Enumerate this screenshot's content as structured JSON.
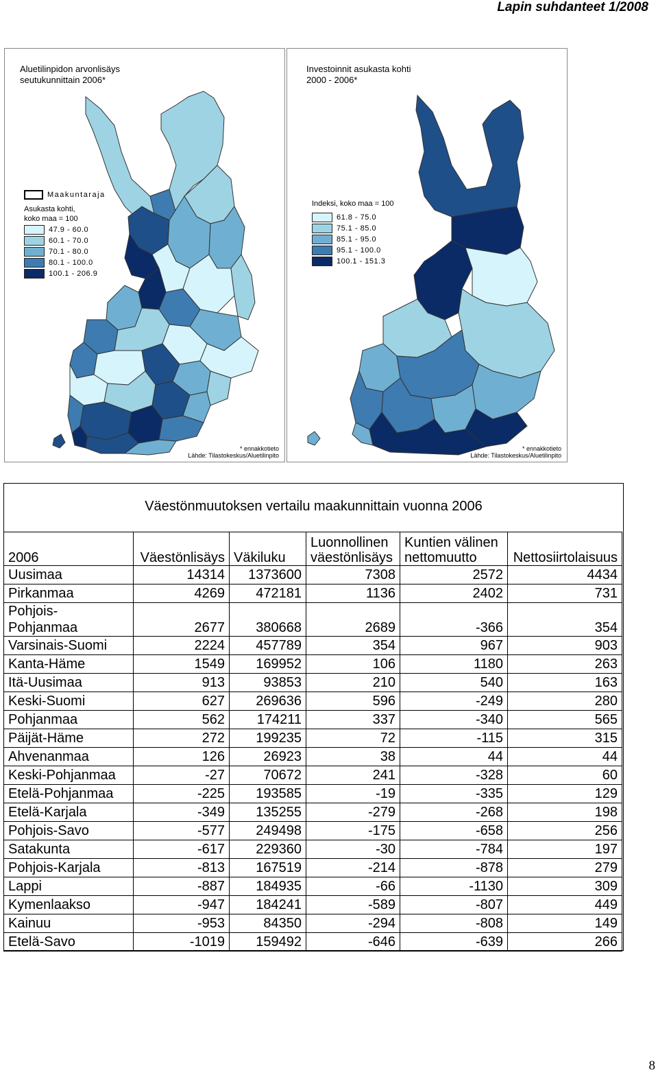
{
  "header": {
    "title": "Lapin suhdanteet 1/2008"
  },
  "colors": {
    "c1": "#d6f4fb",
    "c2": "#9ed3e4",
    "c3": "#6fb0d2",
    "c4": "#3e7bb0",
    "c5": "#1f4f88",
    "c6": "#0b2b66"
  },
  "map_left": {
    "title_line1": "Aluetilinpidon arvonlisäys",
    "title_line2": "seutukunnittain 2006*",
    "boundary_label": "Maakuntaraja",
    "legend_caption1": "Asukasta kohti,",
    "legend_caption2": "koko maa = 100",
    "legend": [
      "47.9 - 60.0",
      "60.1 - 70.0",
      "70.1 - 80.0",
      "80.1 - 100.0",
      "100.1 - 206.9"
    ],
    "note": "* ennakkotieto",
    "source": "Lähde: Tilastokeskus/Aluetilinpito"
  },
  "map_right": {
    "title_line1": "Investoinnit asukasta kohti",
    "title_line2": "2000 - 2006*",
    "legend_caption1": "Indeksi, koko maa = 100",
    "legend": [
      "61.8 - 75.0",
      "75.1 - 85.0",
      "85.1 - 95.0",
      "95.1 - 100.0",
      "100.1 - 151.3"
    ],
    "note": "* ennakkotieto",
    "source": "Lähde: Tilastokeskus/Aluetilinpito"
  },
  "table": {
    "title": "Väestönmuutoksen vertailu maakunnittain vuonna 2006",
    "headers": {
      "year": "2006",
      "h1": "Väestönlisäys",
      "h2": "Väkiluku",
      "h3a": "Luonnollinen",
      "h3b": "väestönlisäys",
      "h4a": "Kuntien välinen",
      "h4b": "nettomuutto",
      "h5": "Nettosiirtolaisuus"
    },
    "rows": [
      {
        "region": "Uusimaa",
        "v1": "14314",
        "v2": "1373600",
        "v3": "7308",
        "v4": "2572",
        "v5": "4434"
      },
      {
        "region": "Pirkanmaa",
        "v1": "4269",
        "v2": "472181",
        "v3": "1136",
        "v4": "2402",
        "v5": "731"
      },
      {
        "region_a": "Pohjois-",
        "region_b": "Pohjanmaa",
        "v1": "2677",
        "v2": "380668",
        "v3": "2689",
        "v4": "-366",
        "v5": "354"
      },
      {
        "region": "Varsinais-Suomi",
        "v1": "2224",
        "v2": "457789",
        "v3": "354",
        "v4": "967",
        "v5": "903"
      },
      {
        "region": "Kanta-Häme",
        "v1": "1549",
        "v2": "169952",
        "v3": "106",
        "v4": "1180",
        "v5": "263"
      },
      {
        "region": "Itä-Uusimaa",
        "v1": "913",
        "v2": "93853",
        "v3": "210",
        "v4": "540",
        "v5": "163"
      },
      {
        "region": "Keski-Suomi",
        "v1": "627",
        "v2": "269636",
        "v3": "596",
        "v4": "-249",
        "v5": "280"
      },
      {
        "region": "Pohjanmaa",
        "v1": "562",
        "v2": "174211",
        "v3": "337",
        "v4": "-340",
        "v5": "565"
      },
      {
        "region": "Päijät-Häme",
        "v1": "272",
        "v2": "199235",
        "v3": "72",
        "v4": "-115",
        "v5": "315"
      },
      {
        "region": "Ahvenanmaa",
        "v1": "126",
        "v2": "26923",
        "v3": "38",
        "v4": "44",
        "v5": "44"
      },
      {
        "region": "Keski-Pohjanmaa",
        "v1": "-27",
        "v2": "70672",
        "v3": "241",
        "v4": "-328",
        "v5": "60"
      },
      {
        "region": "Etelä-Pohjanmaa",
        "v1": "-225",
        "v2": "193585",
        "v3": "-19",
        "v4": "-335",
        "v5": "129"
      },
      {
        "region": "Etelä-Karjala",
        "v1": "-349",
        "v2": "135255",
        "v3": "-279",
        "v4": "-268",
        "v5": "198"
      },
      {
        "region": "Pohjois-Savo",
        "v1": "-577",
        "v2": "249498",
        "v3": "-175",
        "v4": "-658",
        "v5": "256"
      },
      {
        "region": "Satakunta",
        "v1": "-617",
        "v2": "229360",
        "v3": "-30",
        "v4": "-784",
        "v5": "197"
      },
      {
        "region": "Pohjois-Karjala",
        "v1": "-813",
        "v2": "167519",
        "v3": "-214",
        "v4": "-878",
        "v5": "279"
      },
      {
        "region": "Lappi",
        "v1": "-887",
        "v2": "184935",
        "v3": "-66",
        "v4": "-1130",
        "v5": "309"
      },
      {
        "region": "Kymenlaakso",
        "v1": "-947",
        "v2": "184241",
        "v3": "-589",
        "v4": "-807",
        "v5": "449"
      },
      {
        "region": "Kainuu",
        "v1": "-953",
        "v2": "84350",
        "v3": "-294",
        "v4": "-808",
        "v5": "149"
      },
      {
        "region": "Etelä-Savo",
        "v1": "-1019",
        "v2": "159492",
        "v3": "-646",
        "v4": "-639",
        "v5": "266"
      }
    ]
  },
  "page_number": "8"
}
